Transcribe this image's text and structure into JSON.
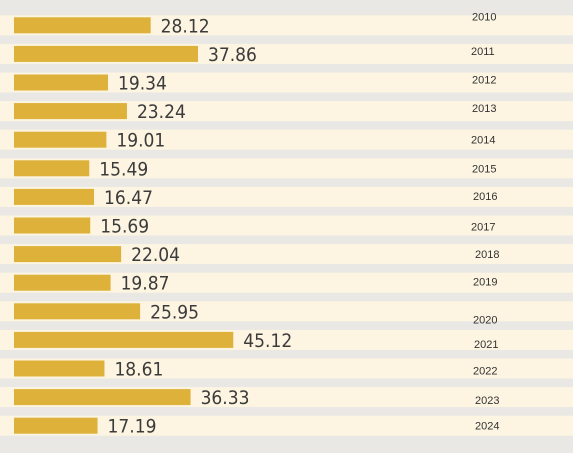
{
  "colors": {
    "bar": "#ddb13a",
    "band_light": "#fdf5e2",
    "band_dark": "#e8e7e4",
    "page": "#e9e8e5"
  },
  "chart_data": {
    "type": "bar",
    "orientation": "horizontal",
    "title": "",
    "xlabel": "",
    "ylabel": "",
    "categories": [
      "2010",
      "2011",
      "2012",
      "2013",
      "2014",
      "2015",
      "2016",
      "2017",
      "2018",
      "2019",
      "2020",
      "2021",
      "2022",
      "2023",
      "2024"
    ],
    "values": [
      28.12,
      37.86,
      19.34,
      23.24,
      19.01,
      15.49,
      16.47,
      15.69,
      22.04,
      19.87,
      25.95,
      45.12,
      18.61,
      36.33,
      17.19
    ],
    "value_labels": [
      "28.12",
      "37.86",
      "19.34",
      "23.24",
      "19.01",
      "15.49",
      "16.47",
      "15.69",
      "22.04",
      "19.87",
      "25.95",
      "45.12",
      "18.61",
      "36.33",
      "17.19"
    ],
    "grid": false,
    "legend": "none"
  }
}
